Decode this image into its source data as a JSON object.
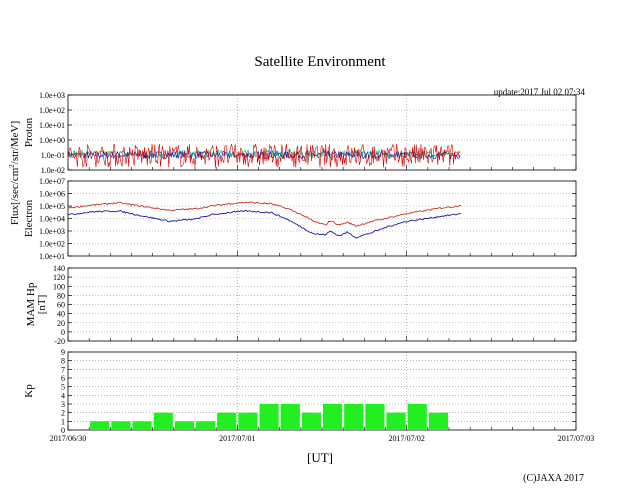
{
  "title": "Satellite Environment",
  "update_text": "update:2017 Jul 02 07:34",
  "copyright": "(C)JAXA 2017",
  "xaxis_label": "[UT]",
  "flux_label_pre": "Flux[/sec/cm",
  "flux_label_sup": "2",
  "flux_label_post": "/str/MeV]",
  "colors": {
    "proton_blue": "#0000cc",
    "proton_green": "#00aa66",
    "proton_red": "#cc0000",
    "electron_red": "#c0392b",
    "electron_blue": "#1a1aa0",
    "kp_bar": "#22ee22",
    "grid": "#888888"
  },
  "chart_data": [
    {
      "type": "line",
      "panel": "proton",
      "ylabel": "Proton",
      "scale": "log",
      "ylim": [
        0.01,
        1000.0
      ],
      "yticks": [
        "1.0e+03",
        "1.0e+02",
        "1.0e+01",
        "1.0e+00",
        "1.0e-01",
        "1.0e-02"
      ],
      "xlim": [
        "2017-06-30",
        "2017-07-03"
      ],
      "xticks": [
        "2017/06/30",
        "2017/07/01",
        "2017/07/02",
        "2017/07/03"
      ],
      "data_end": "2017-07-02 07:34",
      "grid": true,
      "series": [
        {
          "color": "blue",
          "typical": 0.1
        },
        {
          "color": "green",
          "typical": 0.12
        },
        {
          "color": "red",
          "typical": 0.03
        }
      ]
    },
    {
      "type": "line",
      "panel": "electron",
      "ylabel": "Electron",
      "scale": "log",
      "ylim": [
        10.0,
        10000000.0
      ],
      "yticks": [
        "1.0e+07",
        "1.0e+06",
        "1.0e+05",
        "1.0e+04",
        "1.0e+03",
        "1.0e+02",
        "1.0e+01"
      ],
      "xlim": [
        "2017-06-30",
        "2017-07-03"
      ],
      "grid": true,
      "series": [
        {
          "color": "red",
          "x_days": [
            0,
            0.15,
            0.3,
            0.45,
            0.6,
            0.75,
            0.85,
            0.95,
            1.05,
            1.2,
            1.3,
            1.38,
            1.45,
            1.52,
            1.55,
            1.6,
            1.65,
            1.7,
            1.8,
            1.9,
            2.0,
            2.1,
            2.2,
            2.28,
            2.32
          ],
          "values": [
            70000,
            120000,
            180000,
            90000,
            45000,
            60000,
            100000,
            150000,
            200000,
            150000,
            60000,
            20000,
            6000,
            3000,
            7000,
            3000,
            5000,
            2500,
            6000,
            12000,
            25000,
            40000,
            70000,
            90000,
            120000
          ]
        },
        {
          "color": "blue",
          "x_days": [
            0,
            0.15,
            0.3,
            0.45,
            0.6,
            0.75,
            0.85,
            0.95,
            1.05,
            1.2,
            1.3,
            1.38,
            1.45,
            1.52,
            1.55,
            1.6,
            1.65,
            1.7,
            1.8,
            1.9,
            2.0,
            2.1,
            2.2,
            2.28,
            2.32
          ],
          "values": [
            20000,
            35000,
            40000,
            15000,
            6000,
            9000,
            20000,
            30000,
            40000,
            30000,
            8000,
            2000,
            600,
            500,
            1000,
            400,
            800,
            300,
            800,
            2500,
            6000,
            9000,
            15000,
            20000,
            25000
          ]
        }
      ]
    },
    {
      "type": "line",
      "panel": "mam",
      "ylabel": "MAM Hp",
      "ylabel2": "[nT]",
      "ylim": [
        -20,
        140
      ],
      "yticks": [
        "140",
        "120",
        "100",
        "80",
        "60",
        "40",
        "20",
        "0",
        "-20"
      ],
      "xlim": [
        "2017-06-30",
        "2017-07-03"
      ],
      "grid": true,
      "series": []
    },
    {
      "type": "bar",
      "panel": "kp",
      "ylabel": "Kp",
      "ylim": [
        0,
        9
      ],
      "yticks": [
        "9",
        "8",
        "7",
        "6",
        "5",
        "4",
        "3",
        "2",
        "1",
        "0"
      ],
      "xlim": [
        "2017-06-30",
        "2017-07-03"
      ],
      "grid": true,
      "bar_interval_hours": 3,
      "start_hour": 3,
      "values": [
        1,
        1,
        1,
        2,
        1,
        1,
        2,
        2,
        3,
        3,
        2,
        3,
        3,
        3,
        2,
        3,
        2
      ]
    }
  ]
}
